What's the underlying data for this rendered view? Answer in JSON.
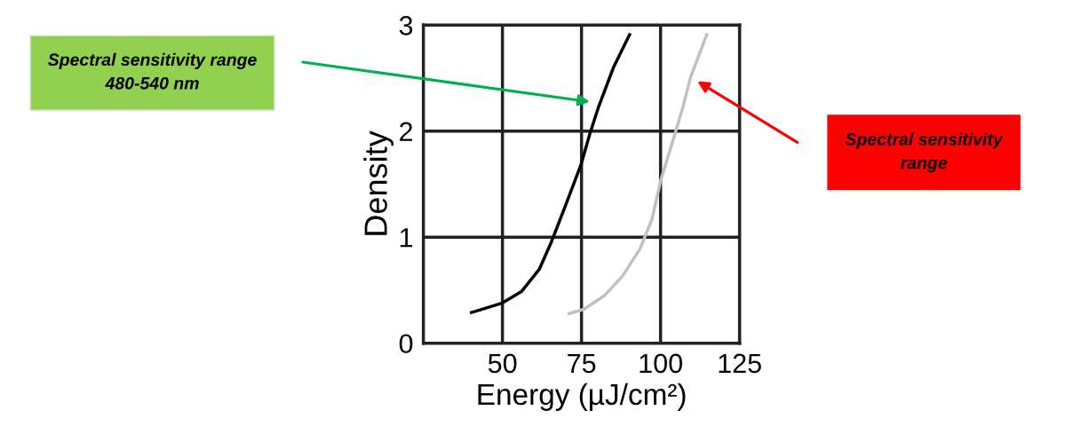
{
  "chart_data": {
    "type": "line",
    "xlabel": "Energy (µJ/cm²)",
    "ylabel": "Density",
    "xlim": [
      25,
      125
    ],
    "xticks": [
      50,
      75,
      100,
      125
    ],
    "ylim": [
      0,
      3
    ],
    "yticks": [
      0,
      1,
      2,
      3
    ],
    "grid": true,
    "line_style": "solid",
    "series": [
      {
        "color": "#000000",
        "x": [
          40.2,
          50,
          56.1,
          61.7,
          65.4,
          70.1,
          74.8,
          77.6,
          80.4,
          85.1,
          90.2
        ],
        "values": [
          0.29,
          0.38,
          0.49,
          0.7,
          0.95,
          1.31,
          1.68,
          1.97,
          2.23,
          2.6,
          2.91
        ]
      },
      {
        "color": "#c0c0c0",
        "x": [
          71.1,
          75.7,
          82.3,
          87.9,
          93.5,
          97.3,
          100.1,
          103.8,
          107.1,
          109.5,
          114.6
        ],
        "values": [
          0.28,
          0.32,
          0.45,
          0.63,
          0.89,
          1.17,
          1.54,
          1.9,
          2.23,
          2.51,
          2.91
        ]
      }
    ],
    "annotations": [
      "Spectral sensitivity range\n480-540 nm",
      "Spectral sensitivity\nrange"
    ]
  }
}
